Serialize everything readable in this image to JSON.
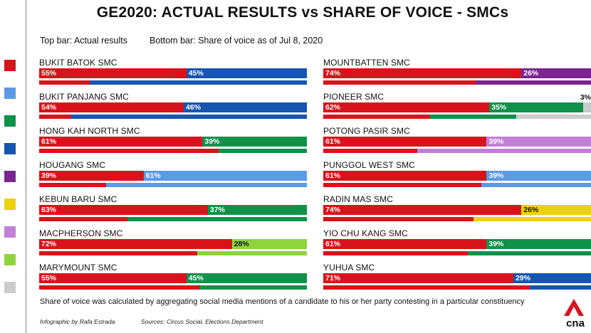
{
  "title": "GE2020: ACTUAL RESULTS vs SHARE OF VOICE - SMCs",
  "legend": {
    "top": "Top bar: Actual results",
    "bottom": "Bottom bar: Share of voice as of Jul 8, 2020"
  },
  "footnote": "Share of voice was calculated by aggregating social media mentions of a candidate to his or her party contesting in a particular constituency",
  "credits": {
    "author": "Infographic by Rafa Estrada",
    "sources": "Sources: Circus Social, Elections Department"
  },
  "logo": {
    "text": "cna",
    "icon": "cna-logo-icon"
  },
  "colors": {
    "red": "#d9131b",
    "blue": "#1655b0",
    "lightblue": "#5b9ae6",
    "green": "#10914a",
    "purple": "#7b2590",
    "yellow": "#ecd20e",
    "lavender": "#c27fd6",
    "lightgreen": "#8fd33e",
    "grey": "#cccccc"
  },
  "sidebar_swatches": [
    "red",
    "lightblue",
    "green",
    "blue",
    "purple",
    "yellow",
    "lavender",
    "lightgreen",
    "grey"
  ],
  "chart_data": {
    "type": "bar",
    "title": "GE2020: ACTUAL RESULTS vs SHARE OF VOICE - SMCs",
    "orientation": "horizontal-stacked",
    "unit": "%",
    "rows": [
      {
        "name": "BUKIT BATOK SMC",
        "actual": [
          {
            "value": 55,
            "color": "red",
            "label": "55%"
          },
          {
            "value": 45,
            "color": "blue",
            "label": "45%"
          }
        ],
        "voice": [
          {
            "value": 19,
            "color": "red"
          },
          {
            "value": 81,
            "color": "blue"
          }
        ]
      },
      {
        "name": "BUKIT PANJANG SMC",
        "actual": [
          {
            "value": 54,
            "color": "red",
            "label": "54%"
          },
          {
            "value": 46,
            "color": "blue",
            "label": "46%"
          }
        ],
        "voice": [
          {
            "value": 12,
            "color": "red"
          },
          {
            "value": 88,
            "color": "blue"
          }
        ]
      },
      {
        "name": "HONG KAH NORTH SMC",
        "actual": [
          {
            "value": 61,
            "color": "red",
            "label": "61%"
          },
          {
            "value": 39,
            "color": "green",
            "label": "39%"
          }
        ],
        "voice": [
          {
            "value": 67,
            "color": "red"
          },
          {
            "value": 33,
            "color": "green"
          }
        ]
      },
      {
        "name": "HOUGANG SMC",
        "actual": [
          {
            "value": 39,
            "color": "red",
            "label": "39%"
          },
          {
            "value": 61,
            "color": "lightblue",
            "label": "61%"
          }
        ],
        "voice": [
          {
            "value": 25,
            "color": "red"
          },
          {
            "value": 75,
            "color": "lightblue"
          }
        ]
      },
      {
        "name": "KEBUN BARU SMC",
        "actual": [
          {
            "value": 63,
            "color": "red",
            "label": "63%"
          },
          {
            "value": 37,
            "color": "green",
            "label": "37%"
          }
        ],
        "voice": [
          {
            "value": 33,
            "color": "red"
          },
          {
            "value": 67,
            "color": "green"
          }
        ]
      },
      {
        "name": "MACPHERSON SMC",
        "actual": [
          {
            "value": 72,
            "color": "red",
            "label": "72%"
          },
          {
            "value": 28,
            "color": "lightgreen",
            "label": "28%"
          }
        ],
        "voice": [
          {
            "value": 59,
            "color": "red"
          },
          {
            "value": 41,
            "color": "lightgreen"
          }
        ]
      },
      {
        "name": "MARYMOUNT SMC",
        "actual": [
          {
            "value": 55,
            "color": "red",
            "label": "55%"
          },
          {
            "value": 45,
            "color": "green",
            "label": "45%"
          }
        ],
        "voice": [
          {
            "value": 60,
            "color": "red"
          },
          {
            "value": 40,
            "color": "green"
          }
        ]
      },
      {
        "name": "MOUNTBATTEN SMC",
        "actual": [
          {
            "value": 74,
            "color": "red",
            "label": "74%"
          },
          {
            "value": 26,
            "color": "purple",
            "label": "26%"
          }
        ],
        "voice": [
          {
            "value": 57,
            "color": "red"
          },
          {
            "value": 43,
            "color": "purple"
          }
        ]
      },
      {
        "name": "PIONEER SMC",
        "actual": [
          {
            "value": 62,
            "color": "red",
            "label": "62%"
          },
          {
            "value": 35,
            "color": "green",
            "label": "35%"
          },
          {
            "value": 3,
            "color": "grey",
            "label": "3%"
          }
        ],
        "voice": [
          {
            "value": 40,
            "color": "red"
          },
          {
            "value": 32,
            "color": "green"
          },
          {
            "value": 28,
            "color": "grey"
          }
        ]
      },
      {
        "name": "POTONG PASIR SMC",
        "actual": [
          {
            "value": 61,
            "color": "red",
            "label": "61%"
          },
          {
            "value": 39,
            "color": "lavender",
            "label": "39%"
          }
        ],
        "voice": [
          {
            "value": 35,
            "color": "red"
          },
          {
            "value": 65,
            "color": "lavender"
          }
        ]
      },
      {
        "name": "PUNGGOL WEST SMC",
        "actual": [
          {
            "value": 61,
            "color": "red",
            "label": "61%"
          },
          {
            "value": 39,
            "color": "lightblue",
            "label": "39%"
          }
        ],
        "voice": [
          {
            "value": 59,
            "color": "red"
          },
          {
            "value": 41,
            "color": "lightblue"
          }
        ]
      },
      {
        "name": "RADIN MAS SMC",
        "actual": [
          {
            "value": 74,
            "color": "red",
            "label": "74%"
          },
          {
            "value": 26,
            "color": "yellow",
            "label": "26%"
          }
        ],
        "voice": [
          {
            "value": 56,
            "color": "red"
          },
          {
            "value": 44,
            "color": "yellow"
          }
        ]
      },
      {
        "name": "YIO CHU KANG SMC",
        "actual": [
          {
            "value": 61,
            "color": "red",
            "label": "61%"
          },
          {
            "value": 39,
            "color": "green",
            "label": "39%"
          }
        ],
        "voice": [
          {
            "value": 54,
            "color": "red"
          },
          {
            "value": 46,
            "color": "green"
          }
        ]
      },
      {
        "name": "YUHUA SMC",
        "actual": [
          {
            "value": 71,
            "color": "red",
            "label": "71%"
          },
          {
            "value": 29,
            "color": "blue",
            "label": "29%"
          }
        ],
        "voice": [
          {
            "value": 77,
            "color": "red"
          },
          {
            "value": 23,
            "color": "blue"
          }
        ]
      }
    ]
  }
}
